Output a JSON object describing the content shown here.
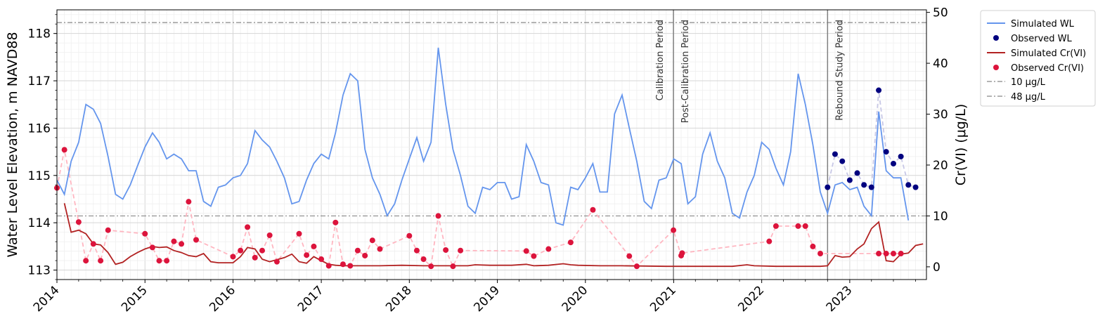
{
  "chart_data": {
    "type": "line",
    "xlim": [
      "2014-01-01",
      "2023-11-15"
    ],
    "x_ticks": [
      "2014",
      "2015",
      "2016",
      "2017",
      "2018",
      "2019",
      "2020",
      "2021",
      "2022",
      "2023"
    ],
    "y_left": {
      "label": "Water Level Elevation, m NAVD88",
      "lim": [
        112.8,
        118.5
      ],
      "ticks": [
        113,
        114,
        115,
        116,
        117,
        118
      ]
    },
    "y_right": {
      "label": "Cr(VI) (μg/L)",
      "lim": [
        -2.5,
        50.5
      ],
      "ticks": [
        0,
        10,
        20,
        30,
        40,
        50
      ]
    },
    "grid": true,
    "legend_position": "outside-top-right",
    "colors": {
      "sim_wl": "#6495ed",
      "obs_wl": "#00007f",
      "sim_cr": "#b22222",
      "obs_cr": "#dc143c",
      "obs_cr_link": "#ffb6c1",
      "obs_wl_link": "#c8c8e6",
      "ref_line": "#888888",
      "period_line": "#808080"
    },
    "periods": [
      {
        "label": "Calibration Period",
        "date": "2020-12-31",
        "side": "left"
      },
      {
        "label": "Post-Calibration Period",
        "date": "2020-12-31",
        "side": "right"
      },
      {
        "label": "Rebound Study Period",
        "date": "2022-10-01",
        "side": "right"
      }
    ],
    "reference_lines": [
      {
        "name": "10 μg/L",
        "value": 10
      },
      {
        "name": "48 μg/L",
        "value": 48
      }
    ],
    "series": [
      {
        "name": "Simulated WL",
        "axis": "left",
        "x": [
          "2014-01-01",
          "2014-02-01",
          "2014-03-01",
          "2014-04-01",
          "2014-05-01",
          "2014-06-01",
          "2014-07-01",
          "2014-08-01",
          "2014-09-01",
          "2014-10-01",
          "2014-11-01",
          "2014-12-01",
          "2015-01-01",
          "2015-02-01",
          "2015-03-01",
          "2015-04-01",
          "2015-05-01",
          "2015-06-01",
          "2015-07-01",
          "2015-08-01",
          "2015-09-01",
          "2015-10-01",
          "2015-11-01",
          "2015-12-01",
          "2016-01-01",
          "2016-02-01",
          "2016-03-01",
          "2016-04-01",
          "2016-05-01",
          "2016-06-01",
          "2016-07-01",
          "2016-08-01",
          "2016-09-01",
          "2016-10-01",
          "2016-11-01",
          "2016-12-01",
          "2017-01-01",
          "2017-02-01",
          "2017-03-01",
          "2017-04-01",
          "2017-05-01",
          "2017-06-01",
          "2017-07-01",
          "2017-08-01",
          "2017-09-01",
          "2017-10-01",
          "2017-11-01",
          "2017-12-01",
          "2018-01-01",
          "2018-02-01",
          "2018-03-01",
          "2018-04-01",
          "2018-05-01",
          "2018-06-01",
          "2018-07-01",
          "2018-08-01",
          "2018-09-01",
          "2018-10-01",
          "2018-11-01",
          "2018-12-01",
          "2019-01-01",
          "2019-02-01",
          "2019-03-01",
          "2019-04-01",
          "2019-05-01",
          "2019-06-01",
          "2019-07-01",
          "2019-08-01",
          "2019-09-01",
          "2019-10-01",
          "2019-11-01",
          "2019-12-01",
          "2020-01-01",
          "2020-02-01",
          "2020-03-01",
          "2020-04-01",
          "2020-05-01",
          "2020-06-01",
          "2020-07-01",
          "2020-08-01",
          "2020-09-01",
          "2020-10-01",
          "2020-11-01",
          "2020-12-01",
          "2021-01-01",
          "2021-02-01",
          "2021-03-01",
          "2021-04-01",
          "2021-05-01",
          "2021-06-01",
          "2021-07-01",
          "2021-08-01",
          "2021-09-01",
          "2021-10-01",
          "2021-11-01",
          "2021-12-01",
          "2022-01-01",
          "2022-02-01",
          "2022-03-01",
          "2022-04-01",
          "2022-05-01",
          "2022-06-01",
          "2022-07-01",
          "2022-08-01",
          "2022-09-01",
          "2022-10-01",
          "2022-11-01",
          "2022-12-01",
          "2023-01-01",
          "2023-02-01",
          "2023-03-01",
          "2023-04-01",
          "2023-05-01",
          "2023-06-01",
          "2023-07-01",
          "2023-08-01",
          "2023-09-01"
        ],
        "values": [
          114.9,
          114.6,
          115.3,
          115.7,
          116.5,
          116.4,
          116.1,
          115.4,
          114.6,
          114.5,
          114.8,
          115.2,
          115.6,
          115.9,
          115.7,
          115.35,
          115.45,
          115.35,
          115.1,
          115.1,
          114.45,
          114.35,
          114.75,
          114.8,
          114.95,
          115.0,
          115.25,
          115.95,
          115.75,
          115.6,
          115.3,
          114.95,
          114.4,
          114.45,
          114.9,
          115.25,
          115.45,
          115.35,
          115.9,
          116.7,
          117.15,
          117.0,
          115.55,
          114.95,
          114.6,
          114.15,
          114.4,
          114.9,
          115.35,
          115.8,
          115.3,
          115.7,
          117.7,
          116.5,
          115.55,
          115.0,
          114.35,
          114.2,
          114.75,
          114.7,
          114.85,
          114.85,
          114.5,
          114.55,
          115.65,
          115.3,
          114.85,
          114.8,
          114.0,
          113.95,
          114.75,
          114.7,
          114.95,
          115.25,
          114.65,
          114.65,
          116.3,
          116.7,
          116.0,
          115.3,
          114.45,
          114.3,
          114.9,
          114.95,
          115.35,
          115.25,
          114.4,
          114.55,
          115.45,
          115.9,
          115.3,
          114.95,
          114.2,
          114.1,
          114.65,
          115.0,
          115.7,
          115.55,
          115.15,
          114.8,
          115.5,
          117.15,
          116.5,
          115.65,
          114.65,
          114.2,
          114.8,
          114.85,
          114.7,
          114.75,
          114.35,
          114.15,
          116.35,
          115.1,
          114.95,
          114.95,
          114.05
        ]
      },
      {
        "name": "Observed WL",
        "axis": "left",
        "x": [
          "2022-10-01",
          "2022-11-01",
          "2022-12-01",
          "2023-01-01",
          "2023-02-01",
          "2023-03-01",
          "2023-04-01",
          "2023-05-01",
          "2023-06-01",
          "2023-07-01",
          "2023-08-01",
          "2023-09-01",
          "2023-10-01"
        ],
        "values": [
          114.75,
          115.45,
          115.3,
          114.9,
          115.05,
          114.8,
          114.75,
          116.8,
          115.5,
          115.25,
          115.4,
          114.8,
          114.75
        ]
      },
      {
        "name": "Simulated Cr(VI)",
        "axis": "right",
        "x": [
          "2014-02-01",
          "2014-03-01",
          "2014-04-01",
          "2014-05-01",
          "2014-06-01",
          "2014-07-01",
          "2014-08-01",
          "2014-09-01",
          "2014-10-01",
          "2014-11-01",
          "2014-12-01",
          "2015-01-01",
          "2015-02-01",
          "2015-03-01",
          "2015-04-01",
          "2015-05-01",
          "2015-06-01",
          "2015-07-01",
          "2015-08-01",
          "2015-09-01",
          "2015-10-01",
          "2015-11-01",
          "2015-12-01",
          "2016-01-01",
          "2016-02-01",
          "2016-03-01",
          "2016-04-01",
          "2016-05-01",
          "2016-06-01",
          "2016-07-01",
          "2016-08-01",
          "2016-09-01",
          "2016-10-01",
          "2016-11-01",
          "2016-12-01",
          "2017-01-01",
          "2017-02-01",
          "2017-03-01",
          "2017-04-01",
          "2017-06-01",
          "2017-09-01",
          "2017-12-01",
          "2018-03-01",
          "2018-06-01",
          "2018-09-01",
          "2018-10-01",
          "2018-12-01",
          "2019-03-01",
          "2019-05-01",
          "2019-06-01",
          "2019-08-01",
          "2019-10-01",
          "2019-11-01",
          "2019-12-01",
          "2020-03-01",
          "2020-06-01",
          "2020-12-01",
          "2021-03-01",
          "2021-06-01",
          "2021-09-01",
          "2021-11-01",
          "2021-12-01",
          "2022-03-01",
          "2022-06-01",
          "2022-09-01",
          "2022-10-01",
          "2022-11-01",
          "2022-12-01",
          "2023-01-01",
          "2023-02-01",
          "2023-03-01",
          "2023-04-01",
          "2023-05-01",
          "2023-06-01",
          "2023-07-01",
          "2023-08-01",
          "2023-09-01",
          "2023-10-01",
          "2023-11-01"
        ],
        "values": [
          12.5,
          6.8,
          7.2,
          6.5,
          4.5,
          4.3,
          2.8,
          0.5,
          0.9,
          2.0,
          2.8,
          3.5,
          4.0,
          3.8,
          3.9,
          3.2,
          2.8,
          2.2,
          2.0,
          2.6,
          1.0,
          0.8,
          0.8,
          0.8,
          2.0,
          3.8,
          3.5,
          1.5,
          1.0,
          1.4,
          1.8,
          2.5,
          1.0,
          0.7,
          2.0,
          1.2,
          0.5,
          0.3,
          0.2,
          0.2,
          0.2,
          0.3,
          0.2,
          0.2,
          0.2,
          0.4,
          0.3,
          0.3,
          0.5,
          0.2,
          0.3,
          0.6,
          0.4,
          0.3,
          0.2,
          0.2,
          0.1,
          0.1,
          0.1,
          0.1,
          0.4,
          0.2,
          0.1,
          0.1,
          0.1,
          0.2,
          2.2,
          1.9,
          2.0,
          3.5,
          4.5,
          7.5,
          8.8,
          1.2,
          1.0,
          2.5,
          2.7,
          4.2,
          4.5
        ]
      },
      {
        "name": "Observed Cr(VI)",
        "axis": "right",
        "x": [
          "2014-01-01",
          "2014-02-01",
          "2014-04-01",
          "2014-05-01",
          "2014-06-01",
          "2014-07-01",
          "2014-08-01",
          "2015-01-01",
          "2015-02-01",
          "2015-03-01",
          "2015-04-01",
          "2015-05-01",
          "2015-06-01",
          "2015-07-01",
          "2015-08-01",
          "2016-01-01",
          "2016-02-01",
          "2016-03-01",
          "2016-04-01",
          "2016-05-01",
          "2016-06-01",
          "2016-07-01",
          "2016-10-01",
          "2016-11-01",
          "2016-12-01",
          "2017-01-01",
          "2017-02-01",
          "2017-03-01",
          "2017-04-01",
          "2017-05-01",
          "2017-06-01",
          "2017-07-01",
          "2017-08-01",
          "2017-09-01",
          "2018-01-01",
          "2018-02-01",
          "2018-03-01",
          "2018-04-01",
          "2018-05-01",
          "2018-06-01",
          "2018-07-01",
          "2018-08-01",
          "2019-05-01",
          "2019-06-01",
          "2019-08-01",
          "2019-11-01",
          "2020-02-01",
          "2020-07-01",
          "2020-08-01",
          "2020-12-31",
          "2021-02-01",
          "2021-02-05",
          "2022-02-01",
          "2022-03-01",
          "2022-06-01",
          "2022-07-01",
          "2022-08-01",
          "2022-09-01",
          "2023-05-01",
          "2023-06-01",
          "2023-07-01",
          "2023-08-01"
        ],
        "values": [
          15.5,
          23.0,
          8.8,
          1.2,
          4.5,
          1.2,
          7.2,
          6.5,
          3.8,
          1.2,
          1.2,
          5.0,
          4.5,
          12.8,
          5.3,
          2.0,
          3.2,
          7.8,
          1.8,
          3.2,
          6.2,
          1.0,
          6.5,
          2.3,
          4.0,
          1.5,
          0.2,
          8.7,
          0.5,
          0.2,
          3.2,
          2.2,
          5.2,
          3.5,
          6.1,
          3.2,
          1.5,
          0.1,
          10.0,
          3.3,
          0.1,
          3.2,
          3.1,
          2.1,
          3.5,
          4.8,
          11.2,
          2.1,
          0.1,
          7.2,
          2.2,
          2.7,
          5.0,
          8.0,
          8.0,
          8.0,
          4.0,
          2.6,
          2.6,
          2.6,
          2.6,
          2.6
        ]
      }
    ]
  }
}
